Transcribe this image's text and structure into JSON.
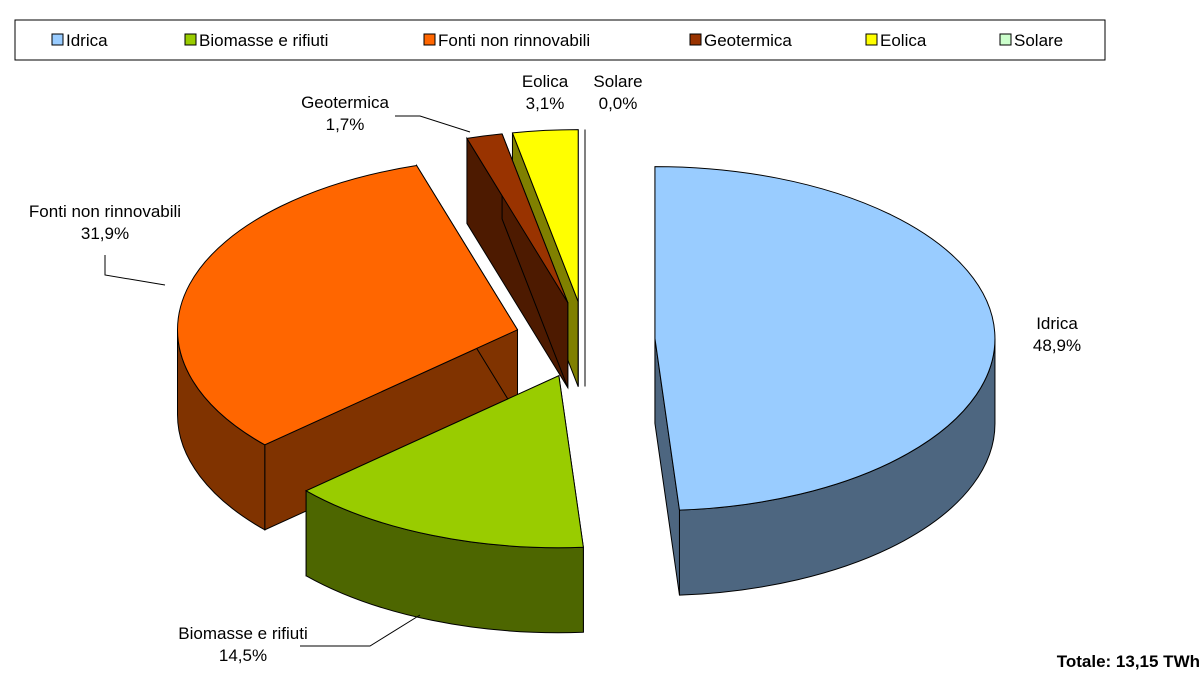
{
  "chart_data": {
    "type": "pie",
    "categories": [
      "Idrica",
      "Biomasse e rifiuti",
      "Fonti non rinnovabili",
      "Geotermica",
      "Eolica",
      "Solare"
    ],
    "values": [
      48.9,
      14.5,
      31.9,
      1.7,
      3.1,
      0.0
    ],
    "value_labels": [
      "48,9%",
      "14,5%",
      "31,9%",
      "1,7%",
      "3,1%",
      "0,0%"
    ],
    "colors": [
      "#99ccff",
      "#99cc00",
      "#ff6600",
      "#993300",
      "#ffff00",
      "#ccffcc"
    ],
    "legend": "top",
    "annotation": "Totale: 13,15 TWh"
  }
}
